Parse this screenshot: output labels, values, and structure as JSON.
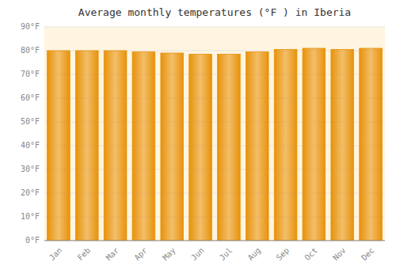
{
  "chart_data": {
    "type": "bar",
    "title": "Average monthly temperatures (°F ) in Iberia",
    "categories": [
      "Jan",
      "Feb",
      "Mar",
      "Apr",
      "May",
      "Jun",
      "Jul",
      "Aug",
      "Sep",
      "Oct",
      "Nov",
      "Dec"
    ],
    "values": [
      80,
      80,
      80,
      79.5,
      79,
      78.5,
      78.5,
      79.5,
      80.5,
      81,
      80.5,
      81
    ],
    "color": "#E8920A",
    "ylim": [
      0,
      90
    ],
    "yticks": [
      {
        "value": 0,
        "label": "0°F"
      },
      {
        "value": 10,
        "label": "10°F"
      },
      {
        "value": 20,
        "label": "20°F"
      },
      {
        "value": 30,
        "label": "30°F"
      },
      {
        "value": 40,
        "label": "40°F"
      },
      {
        "value": 50,
        "label": "50°F"
      },
      {
        "value": 60,
        "label": "60°F"
      },
      {
        "value": 70,
        "label": "70°F"
      },
      {
        "value": 80,
        "label": "80°F"
      },
      {
        "value": 90,
        "label": "90°F"
      }
    ],
    "grid": true
  }
}
